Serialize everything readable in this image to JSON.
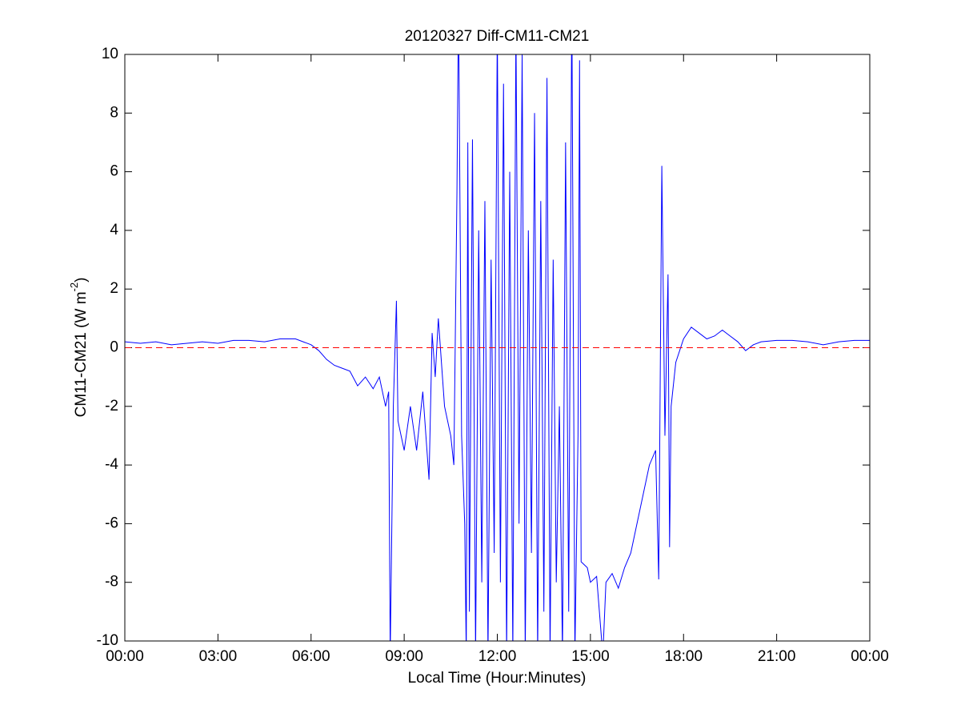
{
  "chart_data": {
    "type": "line",
    "title": "20120327 Diff-CM11-CM21",
    "xlabel": "Local Time (Hour:Minutes)",
    "ylabel": [
      "CM11-CM21 (W m",
      "-2",
      ")"
    ],
    "xlim": [
      0,
      24
    ],
    "xticks": [
      {
        "value": 0,
        "label": "00:00"
      },
      {
        "value": 3,
        "label": "03:00"
      },
      {
        "value": 6,
        "label": "06:00"
      },
      {
        "value": 9,
        "label": "09:00"
      },
      {
        "value": 12,
        "label": "12:00"
      },
      {
        "value": 15,
        "label": "15:00"
      },
      {
        "value": 18,
        "label": "18:00"
      },
      {
        "value": 21,
        "label": "21:00"
      },
      {
        "value": 24,
        "label": "00:00"
      }
    ],
    "ylim": [
      -10,
      10
    ],
    "yticks": [
      -10,
      -8,
      -6,
      -4,
      -2,
      0,
      2,
      4,
      6,
      8,
      10
    ],
    "hlines": [
      {
        "value": 0,
        "color": "#ff0000",
        "style": "dashed"
      }
    ],
    "series": [
      {
        "color": "#0000ff",
        "x": [
          0,
          0.5,
          1,
          1.5,
          2,
          2.5,
          3,
          3.5,
          4,
          4.5,
          5,
          5.5,
          6,
          6.25,
          6.5,
          6.75,
          7,
          7.25,
          7.5,
          7.75,
          8,
          8.2,
          8.4,
          8.5,
          8.55,
          8.65,
          8.75,
          8.8,
          9,
          9.2,
          9.4,
          9.6,
          9.8,
          9.9,
          10,
          10.1,
          10.3,
          10.5,
          10.6,
          10.7,
          10.75,
          10.85,
          10.95,
          11,
          11.05,
          11.1,
          11.2,
          11.3,
          11.4,
          11.5,
          11.6,
          11.7,
          11.8,
          11.9,
          12,
          12.1,
          12.2,
          12.3,
          12.4,
          12.5,
          12.6,
          12.7,
          12.8,
          12.9,
          13,
          13.1,
          13.2,
          13.3,
          13.4,
          13.5,
          13.6,
          13.7,
          13.8,
          13.9,
          14,
          14.1,
          14.2,
          14.3,
          14.4,
          14.5,
          14.6,
          14.65,
          14.7,
          14.9,
          15,
          15.2,
          15.4,
          15.5,
          15.7,
          15.9,
          16.1,
          16.3,
          16.5,
          16.7,
          16.9,
          17.1,
          17.2,
          17.3,
          17.4,
          17.5,
          17.55,
          17.6,
          17.75,
          18,
          18.25,
          18.5,
          18.75,
          19,
          19.25,
          19.5,
          19.75,
          20,
          20.25,
          20.5,
          21,
          21.5,
          22,
          22.5,
          23,
          23.5,
          24
        ],
        "values": [
          0.2,
          0.15,
          0.2,
          0.1,
          0.15,
          0.2,
          0.15,
          0.25,
          0.25,
          0.2,
          0.3,
          0.3,
          0.1,
          -0.1,
          -0.4,
          -0.6,
          -0.7,
          -0.8,
          -1.3,
          -1.0,
          -1.4,
          -1.0,
          -2.0,
          -1.5,
          -10.5,
          -2,
          1.6,
          -2.5,
          -3.5,
          -2,
          -3.5,
          -1.5,
          -4.5,
          0.5,
          -1,
          1.0,
          -2,
          -3,
          -4,
          5.3,
          12,
          -3,
          -6,
          -10.5,
          7,
          -9,
          7.1,
          -10.5,
          4,
          -8,
          5,
          -10.5,
          3,
          -7,
          11,
          -8,
          9,
          -10.5,
          6,
          -10.5,
          11,
          -6,
          10,
          -10.5,
          4,
          -7,
          8,
          -10.5,
          5,
          -9,
          9.2,
          -10.5,
          3,
          -8,
          -2,
          -10.5,
          7,
          -9,
          12,
          -10.5,
          -3,
          9.8,
          -7.3,
          -7.5,
          -8,
          -7.8,
          -10.5,
          -8,
          -7.7,
          -8.2,
          -7.5,
          -7,
          -6,
          -5,
          -4,
          -3.5,
          -7.9,
          6.2,
          -3,
          2.5,
          -6.8,
          -2,
          -0.5,
          0.3,
          0.7,
          0.5,
          0.3,
          0.4,
          0.6,
          0.4,
          0.2,
          -0.1,
          0.1,
          0.2,
          0.25,
          0.25,
          0.2,
          0.1,
          0.2,
          0.25,
          0.25
        ]
      }
    ]
  }
}
